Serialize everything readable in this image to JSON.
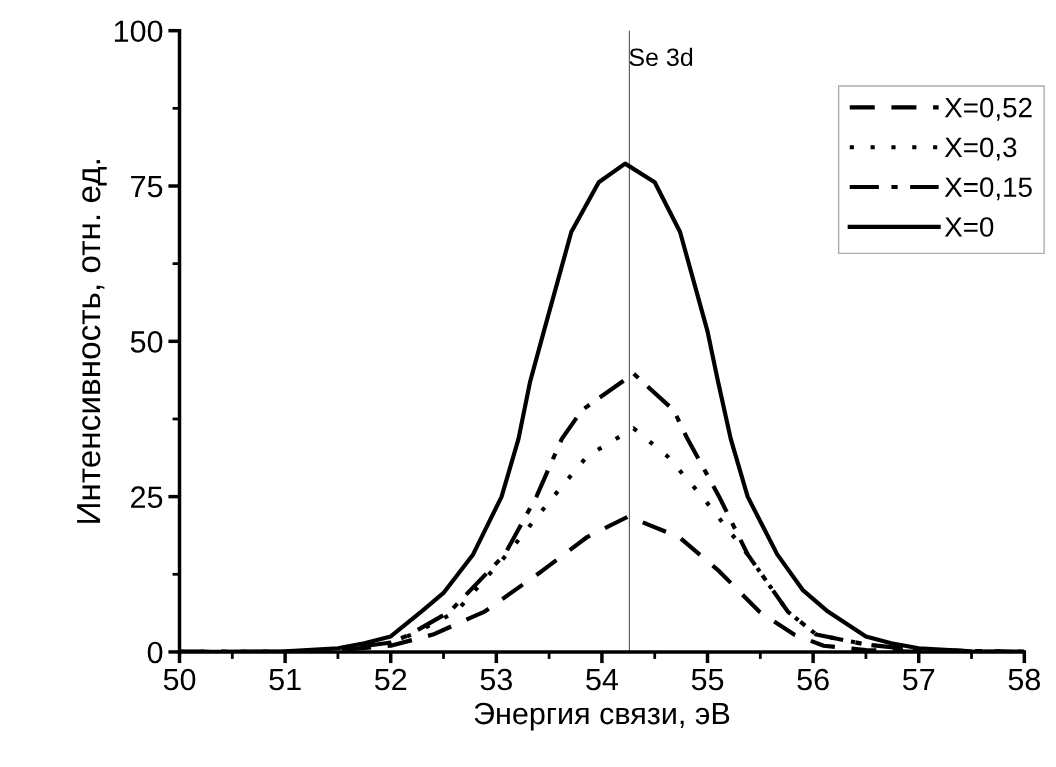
{
  "chart_data": {
    "type": "line",
    "title": "Se 3d",
    "xlabel": "Энергия связи, эВ",
    "ylabel": "Интенсивность, отн. ед.",
    "xlim": [
      50,
      58
    ],
    "xticks": [
      50,
      51,
      52,
      53,
      54,
      55,
      56,
      57,
      58
    ],
    "ylim": [
      0,
      100
    ],
    "yticks": [
      0,
      25,
      50,
      75,
      100
    ],
    "grid": false,
    "legend": "top right",
    "marker": "none",
    "ref_lines": [
      {
        "axis": "x",
        "value": 54.26,
        "color": "#555555",
        "line_style": "solid"
      }
    ],
    "series": [
      {
        "name": "X=0,52",
        "color": "#000000",
        "line_style": "dashed",
        "x": [
          50,
          51,
          51.5,
          52.0,
          52.4,
          52.89,
          53.43,
          53.86,
          54.25,
          54.73,
          55.11,
          55.49,
          55.82,
          56.1,
          56.5,
          57,
          58
        ],
        "values": [
          0,
          0,
          0.3,
          1,
          2.8,
          6.5,
          13,
          18.5,
          21.8,
          18.5,
          13,
          6.5,
          2.8,
          1,
          0.3,
          0,
          0
        ]
      },
      {
        "name": "X=0,3",
        "color": "#000000",
        "line_style": "dotted",
        "x": [
          50,
          51,
          51.5,
          52.0,
          52.2,
          52.62,
          53.1,
          53.54,
          53.86,
          54.3,
          54.62,
          54.95,
          55.38,
          55.76,
          56.03,
          56.5,
          57,
          58
        ],
        "values": [
          0,
          0,
          0.4,
          1.5,
          2.8,
          6.5,
          15.7,
          25,
          31.5,
          36,
          31.5,
          25,
          15.7,
          6.5,
          2.8,
          1.2,
          0.3,
          0
        ]
      },
      {
        "name": "X=0,15",
        "color": "#000000",
        "line_style": "dashdot",
        "x": [
          50,
          51,
          51.5,
          52.0,
          52.18,
          52.56,
          53.08,
          53.38,
          53.62,
          53.81,
          54.3,
          54.68,
          54.81,
          55.11,
          55.38,
          55.76,
          56.03,
          56.5,
          57,
          58
        ],
        "values": [
          0,
          0,
          0.4,
          1.5,
          2.8,
          6.5,
          15.7,
          25,
          34.3,
          38.9,
          44.8,
          38.9,
          34.3,
          25,
          15.7,
          6.5,
          2.8,
          1.2,
          0.3,
          0
        ]
      },
      {
        "name": "X=0",
        "color": "#000000",
        "line_style": "solid",
        "x": [
          50,
          50.5,
          51,
          51.5,
          51.75,
          52,
          52.29,
          52.5,
          52.78,
          53.05,
          53.21,
          53.32,
          53.45,
          53.71,
          53.97,
          54.22,
          54.5,
          54.74,
          55.0,
          55.1,
          55.22,
          55.38,
          55.66,
          55.9,
          56.14,
          56.5,
          56.74,
          57,
          57.5,
          58
        ],
        "values": [
          0,
          0,
          0.1,
          0.6,
          1.4,
          2.5,
          6.5,
          9.5,
          15.7,
          25,
          34.3,
          43.5,
          51.6,
          67.6,
          75.6,
          78.6,
          75.6,
          67.6,
          51.6,
          43.5,
          34.3,
          25,
          15.7,
          10,
          6.5,
          2.5,
          1.4,
          0.6,
          0.1,
          0
        ]
      }
    ]
  }
}
